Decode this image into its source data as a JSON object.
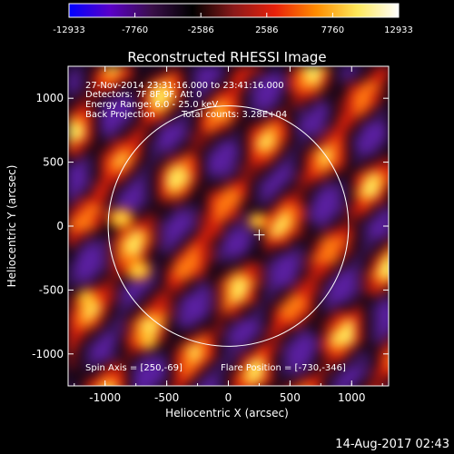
{
  "chart_data": {
    "type": "heatmap",
    "title": "Reconstructed RHESSI Image",
    "xlabel": "Heliocentric X (arcsec)",
    "ylabel": "Heliocentric Y (arcsec)",
    "xlim": [
      -1300,
      1300
    ],
    "ylim": [
      -1250,
      1250
    ],
    "xticks": [
      -1000,
      -500,
      0,
      500,
      1000
    ],
    "xtick_labels": [
      "-1000",
      "-500",
      "0",
      "500",
      "1000"
    ],
    "yticks": [
      -1000,
      -500,
      0,
      500,
      1000
    ],
    "ytick_labels": [
      "-1000",
      "-500",
      "0",
      "500",
      "1000"
    ],
    "colorbar": {
      "min": -12933,
      "max": 12933,
      "ticks": [
        -12933,
        -7760,
        -2586,
        2586,
        7760,
        12933
      ],
      "tick_labels": [
        "-12933",
        "-7760",
        "-2586",
        "2586",
        "7760",
        "12933"
      ],
      "colors": [
        "#0000ff",
        "#5a00c8",
        "#3a0f4a",
        "#000000",
        "#8a1a1a",
        "#e8200a",
        "#ff8c00",
        "#ffe85a",
        "#ffffff"
      ]
    },
    "annotations": [
      "27-Nov-2014 23:31:16.000 to 23:41:16.000",
      "Detectors: 7F 8F 9F, Att 0",
      "Energy Range: 6.0 - 25.0 keV",
      "Back Projection",
      "Total counts: 3.28E+04"
    ],
    "bottom_annotations": {
      "spin_axis": "Spin Axis = [250,-69]",
      "flare_position": "Flare Position = [-730,-346]"
    },
    "solar_disk_radius": 975,
    "marker": {
      "x": 250,
      "y": -69
    },
    "hotspots": [
      {
        "x": -870,
        "y": 60,
        "value": 12933
      },
      {
        "x": -730,
        "y": -346,
        "value": 12900
      },
      {
        "x": 240,
        "y": 40,
        "value": 9000
      },
      {
        "x": -1150,
        "y": -560,
        "value": 8500
      },
      {
        "x": -650,
        "y": -900,
        "value": 7000
      }
    ]
  },
  "footer": {
    "date": "14-Aug-2017 02:43"
  }
}
